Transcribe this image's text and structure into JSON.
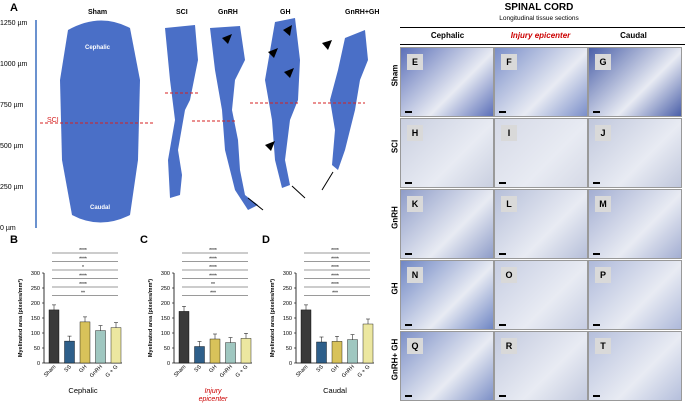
{
  "panelA": {
    "letter": "A",
    "yaxis": [
      "1250 µm",
      "1000 µm",
      "750 µm",
      "500 µm",
      "250 µm",
      "0 µm"
    ],
    "sci_marker": "SCI",
    "groups": [
      "Sham",
      "SCI",
      "GnRH",
      "GH",
      "GnRH+GH"
    ],
    "cephalic": "Cephalic",
    "caudal": "Caudal"
  },
  "grid": {
    "title": "SPINAL CORD",
    "subtitle": "Longitudinal  tissue sections",
    "columns": [
      "Cephalic",
      "Injury epicenter",
      "Caudal"
    ],
    "rows": [
      "Sham",
      "SCI",
      "GnRH",
      "GH",
      "GnRH+\nGH"
    ],
    "letters": [
      [
        "E",
        "F",
        "G"
      ],
      [
        "H",
        "I",
        "J"
      ],
      [
        "K",
        "L",
        "M"
      ],
      [
        "N",
        "O",
        "P"
      ],
      [
        "Q",
        "R",
        "T"
      ]
    ],
    "accent": "#cc0000"
  },
  "chart_data": [
    {
      "type": "bar",
      "panel": "B",
      "categories": [
        "Sham",
        "SS",
        "GH",
        "GnRH",
        "G + G"
      ],
      "values": [
        177,
        73,
        137,
        108,
        118
      ],
      "ylabel": "Myelinated area (pixeles/mm²)",
      "ylim": [
        0,
        300
      ],
      "yticks": [
        0,
        50,
        100,
        150,
        200,
        250,
        300
      ],
      "xlabel": "Cephalic",
      "significance": [
        "****",
        "****",
        "*",
        "****",
        "****",
        "**"
      ]
    },
    {
      "type": "bar",
      "panel": "C",
      "categories": [
        "Sham",
        "SS",
        "GH",
        "GnRH",
        "G + G"
      ],
      "values": [
        172,
        55,
        80,
        68,
        82
      ],
      "ylabel": "Myelinated area (pixeles/mm²)",
      "ylim": [
        0,
        300
      ],
      "yticks": [
        0,
        50,
        100,
        150,
        200,
        250,
        300
      ],
      "xlabel": "Injury epicenter",
      "significance": [
        "****",
        "****",
        "****",
        "****",
        "**",
        "***"
      ]
    },
    {
      "type": "bar",
      "panel": "D",
      "categories": [
        "Sham",
        "SS",
        "GH",
        "GnRH",
        "G + G"
      ],
      "values": [
        177,
        70,
        72,
        78,
        130
      ],
      "ylabel": "Myelinated area (pixeles/mm²)",
      "ylim": [
        0,
        300
      ],
      "yticks": [
        0,
        50,
        100,
        150,
        200,
        250,
        300
      ],
      "xlabel": "Caudal",
      "significance": [
        "****",
        "****",
        "****",
        "****",
        "****",
        "***"
      ]
    }
  ],
  "bar_colors": [
    "#3a3a3a",
    "#2e5f8a",
    "#d8c25a",
    "#9fc7c0",
    "#ece7a0"
  ]
}
